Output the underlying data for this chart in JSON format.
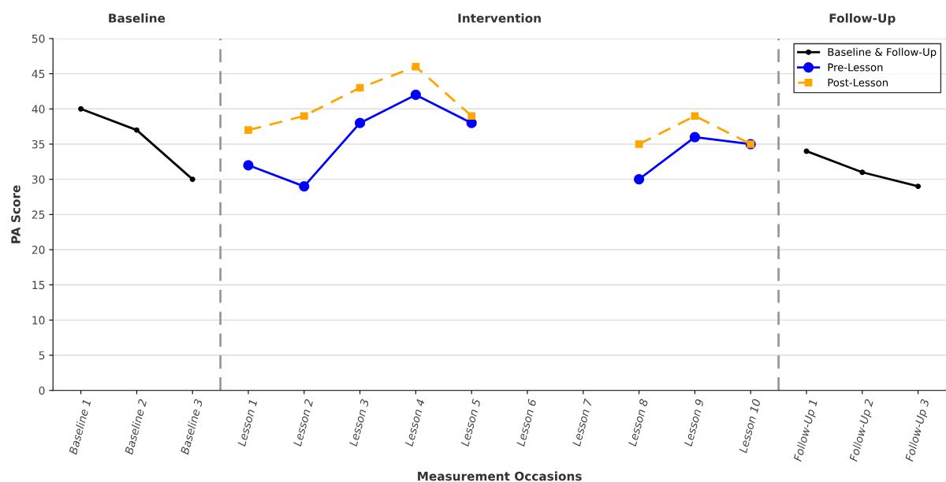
{
  "chart_data": {
    "type": "line",
    "xlabel": "Measurement Occasions",
    "ylabel": "PA Score",
    "categories": [
      "Baseline 1",
      "Baseline 2",
      "Baseline 3",
      "Lesson 1",
      "Lesson 2",
      "Lesson 3",
      "Lesson 4",
      "Lesson 5",
      "Lesson 6",
      "Lesson 7",
      "Lesson 8",
      "Lesson 9",
      "Lesson 10",
      "Follow-Up 1",
      "Follow-Up 2",
      "Follow-Up 3"
    ],
    "series": [
      {
        "name": "Baseline & Follow-Up",
        "color": "#000000",
        "marker": "circle",
        "line_style": "solid",
        "values": [
          40,
          37,
          30,
          null,
          null,
          null,
          null,
          null,
          null,
          null,
          null,
          null,
          null,
          34,
          31,
          29
        ]
      },
      {
        "name": "Pre-Lesson",
        "color": "#0000ff",
        "marker": "circle",
        "line_style": "solid",
        "values": [
          null,
          null,
          null,
          32,
          29,
          38,
          42,
          38,
          null,
          null,
          30,
          36,
          35,
          null,
          null,
          null
        ]
      },
      {
        "name": "Post-Lesson",
        "color": "#ffa500",
        "marker": "square",
        "line_style": "dashed",
        "values": [
          null,
          null,
          null,
          37,
          39,
          43,
          46,
          39,
          null,
          null,
          35,
          39,
          35,
          null,
          null,
          null
        ]
      }
    ],
    "ylim": [
      0,
      50
    ],
    "yticks": [
      0,
      5,
      10,
      15,
      20,
      25,
      30,
      35,
      40,
      45,
      50
    ],
    "annotations": [
      "Baseline",
      "Intervention",
      "Follow-Up"
    ],
    "grid": "y",
    "legend": "top right"
  }
}
